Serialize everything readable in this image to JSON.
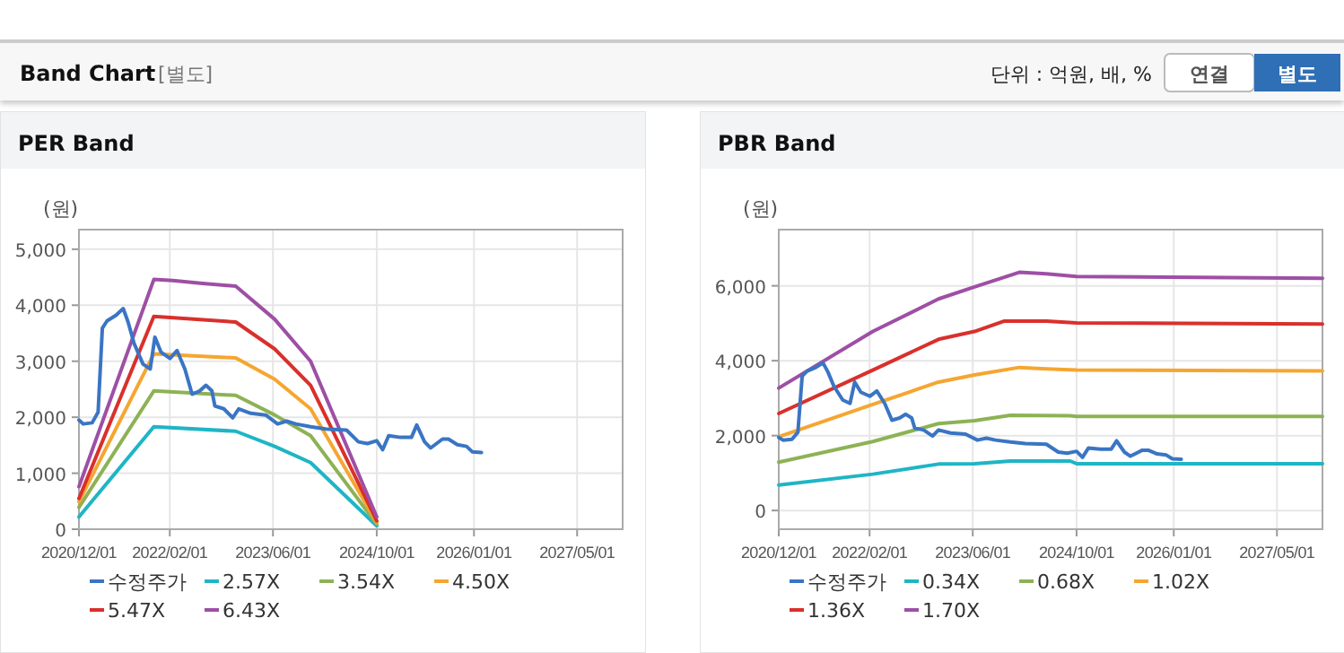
{
  "chart_data": [
    {
      "type": "other",
      "title": "Band Chart",
      "annotations": [
        "[별도]",
        "단위 : 억원, 배, %",
        "연결",
        "별도"
      ]
    },
    {
      "type": "line",
      "title": "PER Band",
      "ylabel": "(원)",
      "grid": true,
      "legend": "bottom",
      "marker": "none",
      "line_style": "solid",
      "xlim": [
        "2020-12-01",
        "2027-12-01"
      ],
      "xticks": [
        {
          "value": "2020-12-01",
          "label": "2020/12/01"
        },
        {
          "value": "2022-02-01",
          "label": "2022/02/01"
        },
        {
          "value": "2023-06-01",
          "label": "2023/06/01"
        },
        {
          "value": "2024-10-01",
          "label": "2024/10/01"
        },
        {
          "value": "2026-01-01",
          "label": "2026/01/01"
        },
        {
          "value": "2027-05-01",
          "label": "2027/05/01"
        }
      ],
      "ylim": [
        0,
        5350
      ],
      "yticks": [
        0,
        {
          "value": 1000,
          "label": "1,000"
        },
        {
          "value": 2000,
          "label": "2,000"
        },
        {
          "value": 3000,
          "label": "3,000"
        },
        {
          "value": 4000,
          "label": "4,000"
        },
        {
          "value": 5000,
          "label": "5,000"
        }
      ],
      "series": [
        {
          "name": "수정주가",
          "color": "#3a75c4",
          "x": [
            "2020-12-01",
            "2020-12-21",
            "2021-02-01",
            "2021-03-01",
            "2021-03-21",
            "2021-04-12",
            "2021-05-24",
            "2021-06-27",
            "2021-07-20",
            "2021-08-17",
            "2021-09-28",
            "2021-11-01",
            "2021-11-23",
            "2021-12-22",
            "2022-02-02",
            "2022-03-07",
            "2022-04-13",
            "2022-05-17",
            "2022-06-22",
            "2022-07-21",
            "2022-08-18",
            "2022-09-01",
            "2022-10-13",
            "2022-11-24",
            "2022-12-22",
            "2023-02-17",
            "2023-04-28",
            "2023-06-23",
            "2023-08-04",
            "2023-09-16",
            "2023-11-25",
            "2024-02-03",
            "2024-05-12",
            "2024-07-07",
            "2024-08-18",
            "2024-10-01",
            "2024-10-29",
            "2024-11-26",
            "2025-01-21",
            "2025-03-13",
            "2025-04-07",
            "2025-05-14",
            "2025-06-11",
            "2025-08-06",
            "2025-09-03",
            "2025-10-15",
            "2025-11-27",
            "2025-12-25",
            "2026-02-05"
          ],
          "values": [
            1950,
            1880,
            1900,
            2090,
            3590,
            3720,
            3820,
            3940,
            3700,
            3320,
            2950,
            2860,
            3430,
            3160,
            3050,
            3190,
            2860,
            2410,
            2470,
            2570,
            2470,
            2200,
            2150,
            1990,
            2150,
            2070,
            2040,
            1880,
            1930,
            1880,
            1830,
            1790,
            1770,
            1560,
            1530,
            1580,
            1420,
            1670,
            1640,
            1640,
            1860,
            1560,
            1450,
            1610,
            1610,
            1510,
            1480,
            1380,
            1370
          ]
        },
        {
          "name": "2.57X",
          "color": "#1fb5c5",
          "x": [
            "2020-12-01",
            "2021-11-18",
            "2022-12-08",
            "2023-06-09",
            "2023-11-25",
            "2024-10-01"
          ],
          "values": [
            220,
            1830,
            1750,
            1480,
            1190,
            60
          ]
        },
        {
          "name": "3.54X",
          "color": "#8db255",
          "x": [
            "2020-12-01",
            "2021-11-18",
            "2022-12-08",
            "2023-06-09",
            "2023-11-25",
            "2024-10-01"
          ],
          "values": [
            390,
            2470,
            2390,
            2040,
            1670,
            90
          ]
        },
        {
          "name": "4.50X",
          "color": "#f5a631",
          "x": [
            "2020-12-01",
            "2021-11-18",
            "2022-12-08",
            "2023-06-09",
            "2023-11-25",
            "2024-10-01"
          ],
          "values": [
            490,
            3130,
            3060,
            2680,
            2150,
            120
          ]
        },
        {
          "name": "5.47X",
          "color": "#d9302c",
          "x": [
            "2020-12-01",
            "2021-11-18",
            "2022-12-08",
            "2023-06-09",
            "2023-11-25",
            "2024-10-01"
          ],
          "values": [
            550,
            3800,
            3700,
            3220,
            2570,
            150
          ]
        },
        {
          "name": "6.43X",
          "color": "#9e4fa5",
          "x": [
            "2020-12-01",
            "2021-11-18",
            "2022-02-16",
            "2022-07-06",
            "2022-12-08",
            "2023-06-09",
            "2023-11-25",
            "2024-10-01"
          ],
          "values": [
            760,
            4460,
            4440,
            4390,
            4340,
            3750,
            3000,
            220
          ]
        }
      ]
    },
    {
      "type": "line",
      "title": "PBR Band",
      "ylabel": "(원)",
      "grid": true,
      "legend": "bottom",
      "marker": "none",
      "line_style": "solid",
      "xlim": [
        "2020-12-01",
        "2027-12-01"
      ],
      "xticks": [
        {
          "value": "2020-12-01",
          "label": "2020/12/01"
        },
        {
          "value": "2022-02-01",
          "label": "2022/02/01"
        },
        {
          "value": "2023-06-01",
          "label": "2023/06/01"
        },
        {
          "value": "2024-10-01",
          "label": "2024/10/01"
        },
        {
          "value": "2026-01-01",
          "label": "2026/01/01"
        },
        {
          "value": "2027-05-01",
          "label": "2027/05/01"
        }
      ],
      "ylim": [
        -500,
        7500
      ],
      "yticks": [
        0,
        {
          "value": 2000,
          "label": "2,000"
        },
        {
          "value": 4000,
          "label": "4,000"
        },
        {
          "value": 6000,
          "label": "6,000"
        }
      ],
      "series": [
        {
          "name": "수정주가",
          "color": "#3a75c4",
          "x": [
            "2020-12-01",
            "2020-12-21",
            "2021-02-01",
            "2021-03-01",
            "2021-03-21",
            "2021-04-12",
            "2021-05-24",
            "2021-06-27",
            "2021-07-20",
            "2021-08-17",
            "2021-09-28",
            "2021-11-01",
            "2021-11-23",
            "2021-12-22",
            "2022-02-02",
            "2022-03-07",
            "2022-04-13",
            "2022-05-17",
            "2022-06-22",
            "2022-07-21",
            "2022-08-18",
            "2022-09-01",
            "2022-10-13",
            "2022-11-24",
            "2022-12-22",
            "2023-02-17",
            "2023-04-28",
            "2023-06-23",
            "2023-08-04",
            "2023-09-16",
            "2023-11-25",
            "2024-02-03",
            "2024-05-12",
            "2024-07-07",
            "2024-08-18",
            "2024-10-01",
            "2024-10-29",
            "2024-11-26",
            "2025-01-21",
            "2025-03-13",
            "2025-04-07",
            "2025-05-14",
            "2025-06-11",
            "2025-08-06",
            "2025-09-03",
            "2025-10-15",
            "2025-11-27",
            "2025-12-25",
            "2026-02-05"
          ],
          "values": [
            1950,
            1880,
            1900,
            2090,
            3590,
            3720,
            3820,
            3940,
            3700,
            3320,
            2950,
            2860,
            3430,
            3160,
            3050,
            3190,
            2860,
            2410,
            2470,
            2570,
            2470,
            2200,
            2150,
            1990,
            2150,
            2070,
            2040,
            1880,
            1930,
            1880,
            1830,
            1790,
            1770,
            1560,
            1530,
            1580,
            1420,
            1670,
            1640,
            1640,
            1860,
            1560,
            1450,
            1610,
            1610,
            1510,
            1480,
            1380,
            1370
          ]
        },
        {
          "name": "0.34X",
          "color": "#1fb5c5",
          "x": [
            "2020-12-01",
            "2022-02-16",
            "2022-12-22",
            "2023-06-09",
            "2023-11-25",
            "2024-09-01",
            "2024-10-01",
            "2027-12-01"
          ],
          "values": [
            680,
            970,
            1240,
            1250,
            1320,
            1320,
            1250,
            1250
          ]
        },
        {
          "name": "0.68X",
          "color": "#8db255",
          "x": [
            "2020-12-01",
            "2022-02-16",
            "2022-12-22",
            "2023-06-09",
            "2023-11-25",
            "2024-09-01",
            "2024-10-01",
            "2027-12-01"
          ],
          "values": [
            1290,
            1840,
            2320,
            2400,
            2540,
            2530,
            2510,
            2510
          ]
        },
        {
          "name": "1.02X",
          "color": "#f5a631",
          "x": [
            "2020-12-01",
            "2022-02-16",
            "2022-12-22",
            "2023-06-09",
            "2024-01-06",
            "2024-05-12",
            "2024-10-01",
            "2027-12-01"
          ],
          "values": [
            1970,
            2830,
            3430,
            3620,
            3820,
            3780,
            3750,
            3730
          ]
        },
        {
          "name": "1.36X",
          "color": "#d9302c",
          "x": [
            "2020-12-01",
            "2022-02-16",
            "2022-12-22",
            "2023-06-09",
            "2023-10-28",
            "2024-05-12",
            "2024-10-01",
            "2027-12-01"
          ],
          "values": [
            2590,
            3750,
            4570,
            4780,
            5060,
            5060,
            5010,
            4980
          ]
        },
        {
          "name": "1.70X",
          "color": "#9e4fa5",
          "x": [
            "2020-12-01",
            "2022-02-16",
            "2022-12-22",
            "2023-06-09",
            "2024-01-06",
            "2024-05-12",
            "2024-10-01",
            "2027-12-01"
          ],
          "values": [
            3270,
            4780,
            5650,
            5970,
            6360,
            6320,
            6250,
            6200
          ]
        }
      ]
    }
  ]
}
